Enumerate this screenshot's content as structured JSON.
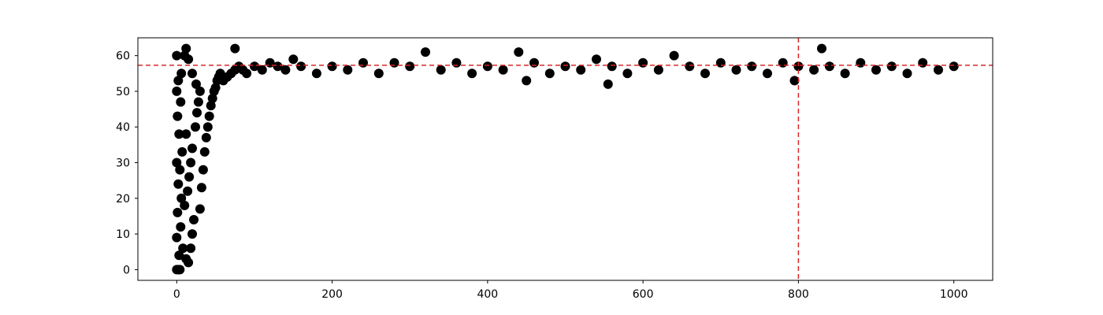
{
  "chart_data": {
    "type": "scatter",
    "title": "",
    "xlabel": "",
    "ylabel": "",
    "xlim": [
      -50,
      1050
    ],
    "ylim": [
      -3,
      65
    ],
    "x_ticks": [
      0,
      200,
      400,
      600,
      800,
      1000
    ],
    "x_tick_labels": [
      "0",
      "200",
      "400",
      "600",
      "800",
      "1000"
    ],
    "y_ticks": [
      0,
      10,
      20,
      30,
      40,
      50,
      60
    ],
    "y_tick_labels": [
      "0",
      "10",
      "20",
      "30",
      "40",
      "50",
      "60"
    ],
    "grid": false,
    "series": [
      {
        "color": "#000000",
        "marker": "circle",
        "points": [
          [
            0,
            0
          ],
          [
            2,
            0
          ],
          [
            4,
            0
          ],
          [
            3,
            4
          ],
          [
            0,
            9
          ],
          [
            5,
            12
          ],
          [
            1,
            16
          ],
          [
            6,
            20
          ],
          [
            2,
            24
          ],
          [
            4,
            28
          ],
          [
            0,
            30
          ],
          [
            7,
            33
          ],
          [
            3,
            38
          ],
          [
            1,
            43
          ],
          [
            5,
            47
          ],
          [
            0,
            50
          ],
          [
            2,
            53
          ],
          [
            6,
            55
          ],
          [
            0,
            60
          ],
          [
            10,
            60
          ],
          [
            12,
            62
          ],
          [
            15,
            59
          ],
          [
            8,
            6
          ],
          [
            12,
            3
          ],
          [
            15,
            2
          ],
          [
            18,
            6
          ],
          [
            20,
            10
          ],
          [
            22,
            14
          ],
          [
            10,
            18
          ],
          [
            14,
            22
          ],
          [
            16,
            26
          ],
          [
            18,
            30
          ],
          [
            20,
            34
          ],
          [
            12,
            38
          ],
          [
            24,
            40
          ],
          [
            26,
            44
          ],
          [
            28,
            47
          ],
          [
            30,
            50
          ],
          [
            25,
            52
          ],
          [
            20,
            55
          ],
          [
            30,
            17
          ],
          [
            32,
            23
          ],
          [
            34,
            28
          ],
          [
            36,
            33
          ],
          [
            38,
            37
          ],
          [
            40,
            40
          ],
          [
            42,
            43
          ],
          [
            44,
            46
          ],
          [
            46,
            48
          ],
          [
            48,
            50
          ],
          [
            50,
            51
          ],
          [
            52,
            53
          ],
          [
            54,
            54
          ],
          [
            56,
            55
          ],
          [
            60,
            53
          ],
          [
            65,
            54
          ],
          [
            70,
            55
          ],
          [
            75,
            56
          ],
          [
            80,
            57
          ],
          [
            75,
            62
          ],
          [
            85,
            56
          ],
          [
            90,
            55
          ],
          [
            100,
            57
          ],
          [
            110,
            56
          ],
          [
            120,
            58
          ],
          [
            130,
            57
          ],
          [
            140,
            56
          ],
          [
            150,
            59
          ],
          [
            160,
            57
          ],
          [
            180,
            55
          ],
          [
            200,
            57
          ],
          [
            220,
            56
          ],
          [
            240,
            58
          ],
          [
            260,
            55
          ],
          [
            280,
            58
          ],
          [
            300,
            57
          ],
          [
            320,
            61
          ],
          [
            340,
            56
          ],
          [
            360,
            58
          ],
          [
            380,
            55
          ],
          [
            400,
            57
          ],
          [
            420,
            56
          ],
          [
            440,
            61
          ],
          [
            450,
            53
          ],
          [
            460,
            58
          ],
          [
            480,
            55
          ],
          [
            500,
            57
          ],
          [
            520,
            56
          ],
          [
            540,
            59
          ],
          [
            555,
            52
          ],
          [
            560,
            57
          ],
          [
            580,
            55
          ],
          [
            600,
            58
          ],
          [
            620,
            56
          ],
          [
            640,
            60
          ],
          [
            660,
            57
          ],
          [
            680,
            55
          ],
          [
            700,
            58
          ],
          [
            720,
            56
          ],
          [
            740,
            57
          ],
          [
            760,
            55
          ],
          [
            780,
            58
          ],
          [
            795,
            53
          ],
          [
            800,
            57
          ],
          [
            820,
            56
          ],
          [
            830,
            62
          ],
          [
            840,
            57
          ],
          [
            860,
            55
          ],
          [
            880,
            58
          ],
          [
            900,
            56
          ],
          [
            920,
            57
          ],
          [
            940,
            55
          ],
          [
            960,
            58
          ],
          [
            980,
            56
          ],
          [
            1000,
            57
          ]
        ]
      }
    ],
    "reference_lines": [
      {
        "orientation": "horizontal",
        "value": 57.3,
        "color": "#d62728",
        "style": "dashed"
      },
      {
        "orientation": "vertical",
        "value": 800,
        "color": "#d62728",
        "style": "dashed"
      }
    ]
  }
}
